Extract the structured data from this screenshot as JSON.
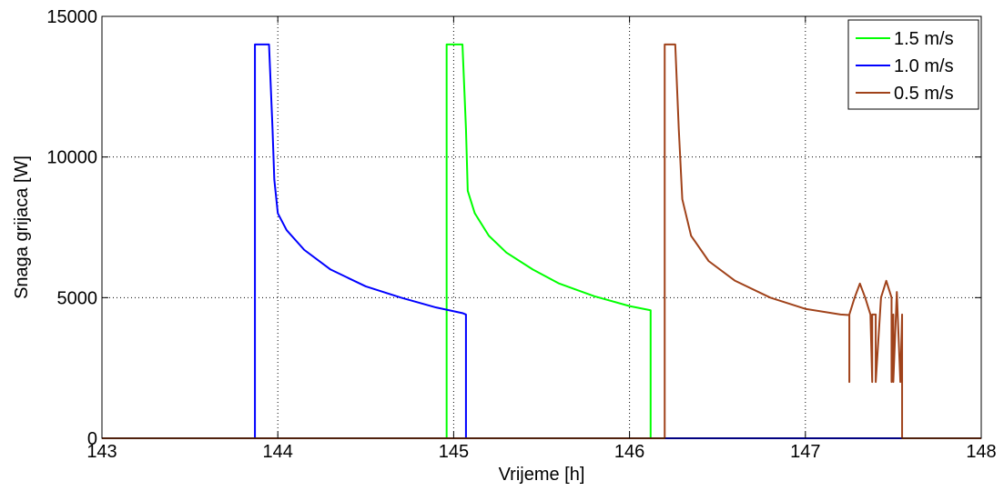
{
  "chart_data": {
    "type": "line",
    "xlabel": "Vrijeme [h]",
    "ylabel": "Snaga grijaca [W]",
    "xlim": [
      143,
      148
    ],
    "ylim": [
      0,
      15000
    ],
    "xticks": [
      "143",
      "144",
      "145",
      "146",
      "147",
      "148"
    ],
    "yticks": [
      "0",
      "5000",
      "10000",
      "15000"
    ],
    "grid": true,
    "legend_position": "top-right",
    "series": [
      {
        "name": "1.5 m/s",
        "color": "#00ff00",
        "x": [
          143,
          144.96,
          144.96,
          145.05,
          145.07,
          145.08,
          145.12,
          145.2,
          145.3,
          145.45,
          145.6,
          145.8,
          146.0,
          146.12,
          146.12,
          148
        ],
        "y": [
          0,
          0,
          14000,
          14000,
          11000,
          8800,
          8000,
          7200,
          6600,
          6000,
          5500,
          5050,
          4700,
          4550,
          0,
          0
        ]
      },
      {
        "name": "1.0 m/s",
        "color": "#0000ff",
        "x": [
          143,
          143.87,
          143.87,
          143.95,
          143.97,
          143.98,
          144.0,
          144.05,
          144.15,
          144.3,
          144.5,
          144.7,
          144.9,
          145.05,
          145.07,
          145.07,
          148
        ],
        "y": [
          0,
          0,
          14000,
          14000,
          11000,
          9200,
          8000,
          7400,
          6700,
          6000,
          5400,
          5000,
          4650,
          4450,
          4400,
          0,
          0
        ]
      },
      {
        "name": "0.5 m/s",
        "color": "#a0421a",
        "x": [
          143,
          146.2,
          146.2,
          146.26,
          146.28,
          146.3,
          146.35,
          146.45,
          146.6,
          146.8,
          147.0,
          147.2,
          147.25,
          147.25,
          147.25,
          147.28,
          147.31,
          147.34,
          147.37,
          147.38,
          147.38,
          147.4,
          147.4,
          147.43,
          147.46,
          147.49,
          147.49,
          147.5,
          147.5,
          147.52,
          147.54,
          147.55,
          147.55,
          148
        ],
        "y": [
          0,
          0,
          14000,
          14000,
          11000,
          8500,
          7200,
          6300,
          5600,
          5000,
          4600,
          4400,
          4380,
          2000,
          4400,
          5000,
          5500,
          5000,
          4400,
          2000,
          4400,
          4400,
          2000,
          5000,
          5600,
          5000,
          2000,
          4400,
          2000,
          5200,
          2000,
          4400,
          0,
          0
        ]
      }
    ]
  }
}
